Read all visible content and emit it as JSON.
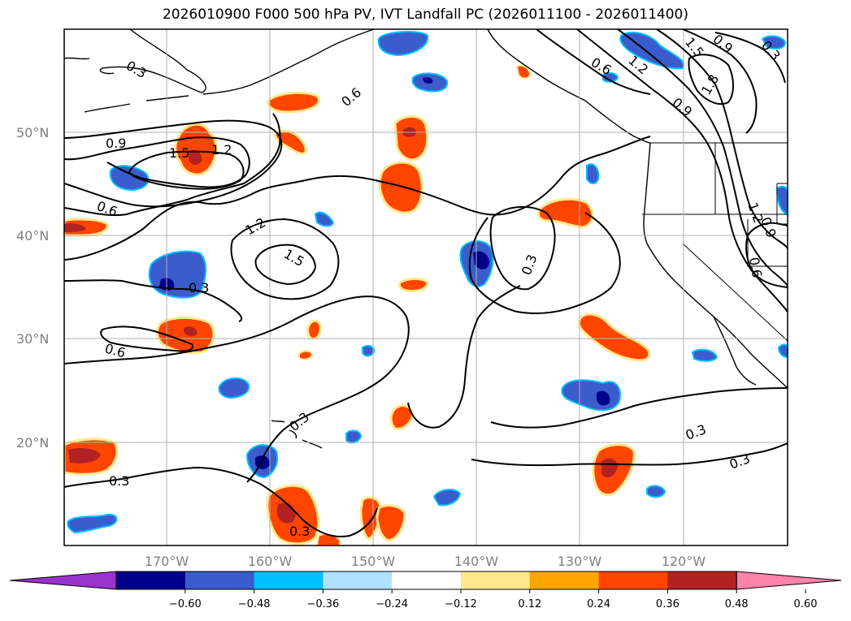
{
  "title": "2026010900 F000 500 hPa PV, IVT Landfall PC (2026011100 - 2026011400)",
  "map": {
    "lat_labels": [
      "50°N",
      "40°N",
      "30°N",
      "20°N"
    ],
    "lon_labels": [
      "170°W",
      "160°W",
      "150°W",
      "140°W",
      "130°W",
      "120°W"
    ],
    "contour_labels": [
      "0.3",
      "0.6",
      "0.9",
      "1.5",
      "1.2",
      "0.6",
      "1.2",
      "1.5",
      "0.3",
      "0.6",
      "0.3",
      "0.3",
      "0.3",
      "0.3",
      "0.3",
      "0.6",
      "1.2",
      "1.5",
      "0.9",
      "1.8",
      "0.9",
      "1.2",
      "0.9",
      "0.6",
      "0.3",
      "0.3"
    ]
  },
  "colorbar": {
    "ticks": [
      "−0.60",
      "−0.48",
      "−0.36",
      "−0.24",
      "−0.12",
      "0.12",
      "0.24",
      "0.36",
      "0.48",
      "0.60"
    ],
    "colors": [
      "#9a32cd",
      "#00008b",
      "#3a5ccc",
      "#00bfff",
      "#b0e2ff",
      "#ffffff",
      "#ffe88c",
      "#ffa500",
      "#ff4500",
      "#b22222",
      "#ff82ab"
    ]
  },
  "colors": {
    "strong_positive": "#b22222",
    "positive": "#ff4500",
    "weak_positive": "#ffa500",
    "faint_positive": "#ffe88c",
    "strong_negative": "#00008b",
    "negative": "#3a5ccc",
    "weak_negative": "#00bfff"
  }
}
